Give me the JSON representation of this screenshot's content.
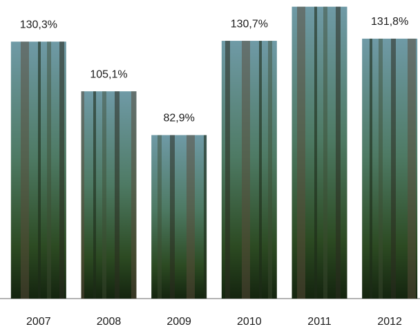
{
  "chart_data": {
    "type": "bar",
    "categories": [
      "2007",
      "2008",
      "2009",
      "2010",
      "2011",
      "2012"
    ],
    "values": [
      130.3,
      105.1,
      82.9,
      130.7,
      148,
      131.8
    ],
    "value_labels": [
      "130,3%",
      "105,1%",
      "82,9%",
      "130,7%",
      null,
      "131,8%"
    ],
    "ylim": [
      0,
      150
    ]
  }
}
